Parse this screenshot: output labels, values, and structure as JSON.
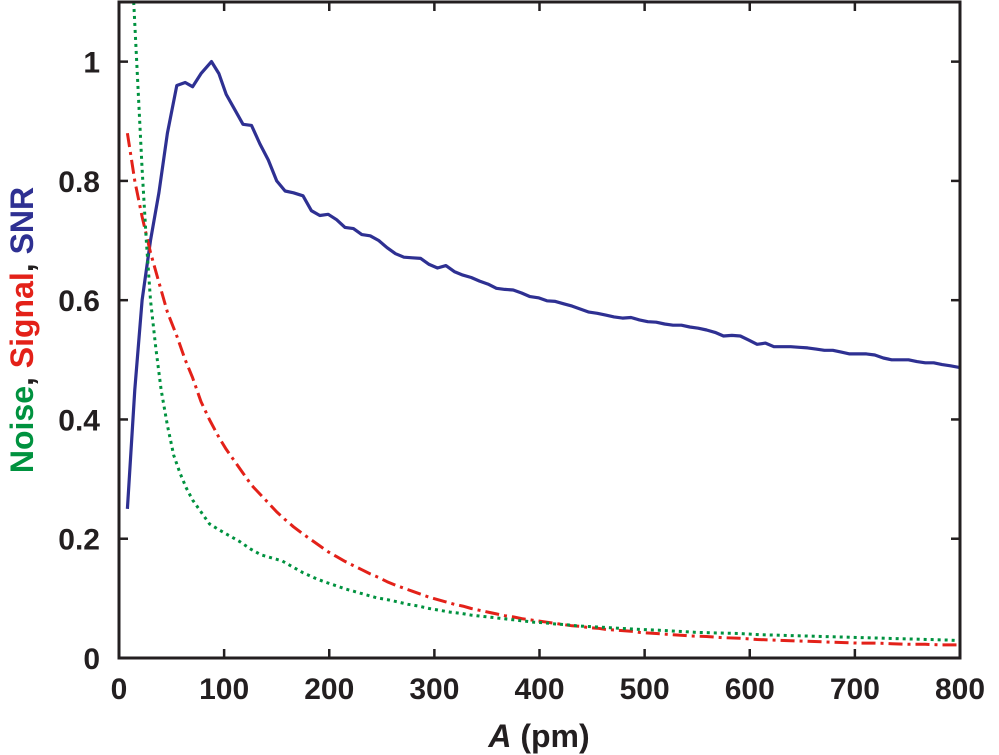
{
  "chart_data": {
    "type": "line",
    "xlim": [
      0,
      800
    ],
    "ylim": [
      0,
      1.1
    ],
    "xticks": [
      0,
      100,
      200,
      300,
      400,
      500,
      600,
      700,
      800
    ],
    "yticks": [
      0,
      0.2,
      0.4,
      0.6,
      0.8,
      1
    ],
    "xtick_labels": [
      "0",
      "100",
      "200",
      "300",
      "400",
      "500",
      "600",
      "700",
      "800"
    ],
    "ytick_labels": [
      "0",
      "0.2",
      "0.4",
      "0.6",
      "0.8",
      "1"
    ],
    "xlabel": {
      "italic": "A",
      "rest": " (pm)"
    },
    "ylabel_parts": [
      {
        "text": "Noise",
        "color": "#00923f"
      },
      {
        "text": ", ",
        "color": "#231f20"
      },
      {
        "text": "Signal",
        "color": "#e32119"
      },
      {
        "text": ", ",
        "color": "#231f20"
      },
      {
        "text": "SNR",
        "color": "#2e3092"
      }
    ],
    "grid": false,
    "series": [
      {
        "color": "#2e3092",
        "style": "solid",
        "points": [
          [
            8,
            0.25
          ],
          [
            15,
            0.45
          ],
          [
            22,
            0.6
          ],
          [
            30,
            0.7
          ],
          [
            38,
            0.78
          ],
          [
            46,
            0.88
          ],
          [
            55,
            0.96
          ],
          [
            63,
            0.965
          ],
          [
            70,
            0.958
          ],
          [
            78,
            0.98
          ],
          [
            88,
            1.0
          ],
          [
            95,
            0.98
          ],
          [
            102,
            0.945
          ],
          [
            110,
            0.92
          ],
          [
            118,
            0.895
          ],
          [
            126,
            0.893
          ],
          [
            134,
            0.862
          ],
          [
            142,
            0.835
          ],
          [
            150,
            0.8
          ],
          [
            158,
            0.783
          ],
          [
            166,
            0.78
          ],
          [
            175,
            0.775
          ],
          [
            183,
            0.75
          ],
          [
            191,
            0.742
          ],
          [
            199,
            0.744
          ],
          [
            207,
            0.735
          ],
          [
            215,
            0.722
          ],
          [
            223,
            0.72
          ],
          [
            231,
            0.71
          ],
          [
            239,
            0.708
          ],
          [
            247,
            0.7
          ],
          [
            255,
            0.688
          ],
          [
            263,
            0.678
          ],
          [
            271,
            0.672
          ],
          [
            279,
            0.671
          ],
          [
            287,
            0.67
          ],
          [
            295,
            0.66
          ],
          [
            303,
            0.654
          ],
          [
            311,
            0.658
          ],
          [
            319,
            0.648
          ],
          [
            327,
            0.642
          ],
          [
            335,
            0.638
          ],
          [
            343,
            0.632
          ],
          [
            351,
            0.627
          ],
          [
            359,
            0.62
          ],
          [
            367,
            0.618
          ],
          [
            375,
            0.617
          ],
          [
            383,
            0.612
          ],
          [
            391,
            0.606
          ],
          [
            399,
            0.604
          ],
          [
            407,
            0.599
          ],
          [
            415,
            0.598
          ],
          [
            423,
            0.594
          ],
          [
            431,
            0.59
          ],
          [
            439,
            0.585
          ],
          [
            447,
            0.58
          ],
          [
            455,
            0.578
          ],
          [
            463,
            0.575
          ],
          [
            471,
            0.572
          ],
          [
            479,
            0.57
          ],
          [
            487,
            0.571
          ],
          [
            495,
            0.567
          ],
          [
            503,
            0.564
          ],
          [
            511,
            0.563
          ],
          [
            519,
            0.56
          ],
          [
            527,
            0.558
          ],
          [
            535,
            0.558
          ],
          [
            543,
            0.555
          ],
          [
            551,
            0.553
          ],
          [
            559,
            0.55
          ],
          [
            567,
            0.546
          ],
          [
            575,
            0.54
          ],
          [
            583,
            0.541
          ],
          [
            591,
            0.54
          ],
          [
            599,
            0.533
          ],
          [
            607,
            0.526
          ],
          [
            615,
            0.528
          ],
          [
            623,
            0.522
          ],
          [
            631,
            0.522
          ],
          [
            639,
            0.522
          ],
          [
            647,
            0.521
          ],
          [
            655,
            0.52
          ],
          [
            663,
            0.518
          ],
          [
            671,
            0.516
          ],
          [
            679,
            0.516
          ],
          [
            687,
            0.513
          ],
          [
            695,
            0.51
          ],
          [
            703,
            0.51
          ],
          [
            711,
            0.51
          ],
          [
            719,
            0.508
          ],
          [
            727,
            0.503
          ],
          [
            735,
            0.5
          ],
          [
            743,
            0.5
          ],
          [
            751,
            0.5
          ],
          [
            759,
            0.497
          ],
          [
            767,
            0.495
          ],
          [
            775,
            0.495
          ],
          [
            783,
            0.492
          ],
          [
            791,
            0.49
          ],
          [
            800,
            0.487
          ]
        ]
      },
      {
        "color": "#e32119",
        "style": "dashdot",
        "points": [
          [
            8,
            0.88
          ],
          [
            15,
            0.8
          ],
          [
            22,
            0.74
          ],
          [
            30,
            0.68
          ],
          [
            38,
            0.63
          ],
          [
            46,
            0.58
          ],
          [
            55,
            0.54
          ],
          [
            63,
            0.5
          ],
          [
            70,
            0.47
          ],
          [
            78,
            0.43
          ],
          [
            86,
            0.4
          ],
          [
            95,
            0.37
          ],
          [
            102,
            0.35
          ],
          [
            110,
            0.33
          ],
          [
            118,
            0.31
          ],
          [
            126,
            0.29
          ],
          [
            134,
            0.275
          ],
          [
            142,
            0.26
          ],
          [
            150,
            0.245
          ],
          [
            158,
            0.232
          ],
          [
            166,
            0.22
          ],
          [
            175,
            0.208
          ],
          [
            183,
            0.198
          ],
          [
            191,
            0.188
          ],
          [
            199,
            0.178
          ],
          [
            207,
            0.17
          ],
          [
            215,
            0.162
          ],
          [
            223,
            0.155
          ],
          [
            231,
            0.148
          ],
          [
            239,
            0.141
          ],
          [
            247,
            0.135
          ],
          [
            255,
            0.128
          ],
          [
            263,
            0.122
          ],
          [
            271,
            0.117
          ],
          [
            279,
            0.112
          ],
          [
            287,
            0.107
          ],
          [
            295,
            0.102
          ],
          [
            303,
            0.098
          ],
          [
            311,
            0.094
          ],
          [
            319,
            0.09
          ],
          [
            327,
            0.087
          ],
          [
            335,
            0.083
          ],
          [
            343,
            0.08
          ],
          [
            351,
            0.077
          ],
          [
            359,
            0.074
          ],
          [
            367,
            0.071
          ],
          [
            375,
            0.069
          ],
          [
            383,
            0.066
          ],
          [
            391,
            0.064
          ],
          [
            399,
            0.062
          ],
          [
            407,
            0.06
          ],
          [
            415,
            0.058
          ],
          [
            423,
            0.056
          ],
          [
            431,
            0.054
          ],
          [
            439,
            0.053
          ],
          [
            447,
            0.051
          ],
          [
            455,
            0.05
          ],
          [
            463,
            0.048
          ],
          [
            471,
            0.047
          ],
          [
            479,
            0.046
          ],
          [
            487,
            0.045
          ],
          [
            495,
            0.043
          ],
          [
            511,
            0.041
          ],
          [
            527,
            0.039
          ],
          [
            543,
            0.037
          ],
          [
            559,
            0.036
          ],
          [
            575,
            0.034
          ],
          [
            591,
            0.033
          ],
          [
            607,
            0.031
          ],
          [
            623,
            0.03
          ],
          [
            639,
            0.029
          ],
          [
            655,
            0.028
          ],
          [
            671,
            0.027
          ],
          [
            687,
            0.026
          ],
          [
            703,
            0.025
          ],
          [
            719,
            0.025
          ],
          [
            735,
            0.024
          ],
          [
            751,
            0.023
          ],
          [
            767,
            0.023
          ],
          [
            783,
            0.022
          ],
          [
            800,
            0.022
          ]
        ]
      },
      {
        "color": "#00923f",
        "style": "dotted",
        "points": [
          [
            14,
            1.1
          ],
          [
            18,
            0.96
          ],
          [
            22,
            0.82
          ],
          [
            26,
            0.7
          ],
          [
            30,
            0.6
          ],
          [
            35,
            0.52
          ],
          [
            40,
            0.45
          ],
          [
            46,
            0.39
          ],
          [
            52,
            0.34
          ],
          [
            58,
            0.31
          ],
          [
            64,
            0.285
          ],
          [
            70,
            0.265
          ],
          [
            78,
            0.245
          ],
          [
            86,
            0.225
          ],
          [
            95,
            0.215
          ],
          [
            105,
            0.205
          ],
          [
            115,
            0.195
          ],
          [
            125,
            0.183
          ],
          [
            135,
            0.173
          ],
          [
            145,
            0.168
          ],
          [
            155,
            0.163
          ],
          [
            165,
            0.153
          ],
          [
            175,
            0.143
          ],
          [
            185,
            0.135
          ],
          [
            195,
            0.128
          ],
          [
            205,
            0.122
          ],
          [
            215,
            0.116
          ],
          [
            225,
            0.111
          ],
          [
            235,
            0.106
          ],
          [
            245,
            0.101
          ],
          [
            255,
            0.098
          ],
          [
            265,
            0.094
          ],
          [
            275,
            0.09
          ],
          [
            285,
            0.087
          ],
          [
            295,
            0.083
          ],
          [
            305,
            0.08
          ],
          [
            315,
            0.077
          ],
          [
            325,
            0.075
          ],
          [
            335,
            0.072
          ],
          [
            345,
            0.07
          ],
          [
            355,
            0.068
          ],
          [
            365,
            0.066
          ],
          [
            375,
            0.064
          ],
          [
            385,
            0.062
          ],
          [
            395,
            0.06
          ],
          [
            405,
            0.059
          ],
          [
            415,
            0.057
          ],
          [
            425,
            0.056
          ],
          [
            435,
            0.054
          ],
          [
            445,
            0.053
          ],
          [
            455,
            0.052
          ],
          [
            465,
            0.051
          ],
          [
            475,
            0.05
          ],
          [
            485,
            0.049
          ],
          [
            495,
            0.048
          ],
          [
            510,
            0.047
          ],
          [
            530,
            0.045
          ],
          [
            550,
            0.043
          ],
          [
            570,
            0.042
          ],
          [
            590,
            0.041
          ],
          [
            610,
            0.039
          ],
          [
            630,
            0.038
          ],
          [
            650,
            0.037
          ],
          [
            670,
            0.036
          ],
          [
            690,
            0.035
          ],
          [
            710,
            0.034
          ],
          [
            730,
            0.033
          ],
          [
            750,
            0.032
          ],
          [
            770,
            0.031
          ],
          [
            790,
            0.03
          ],
          [
            800,
            0.029
          ]
        ]
      }
    ]
  }
}
